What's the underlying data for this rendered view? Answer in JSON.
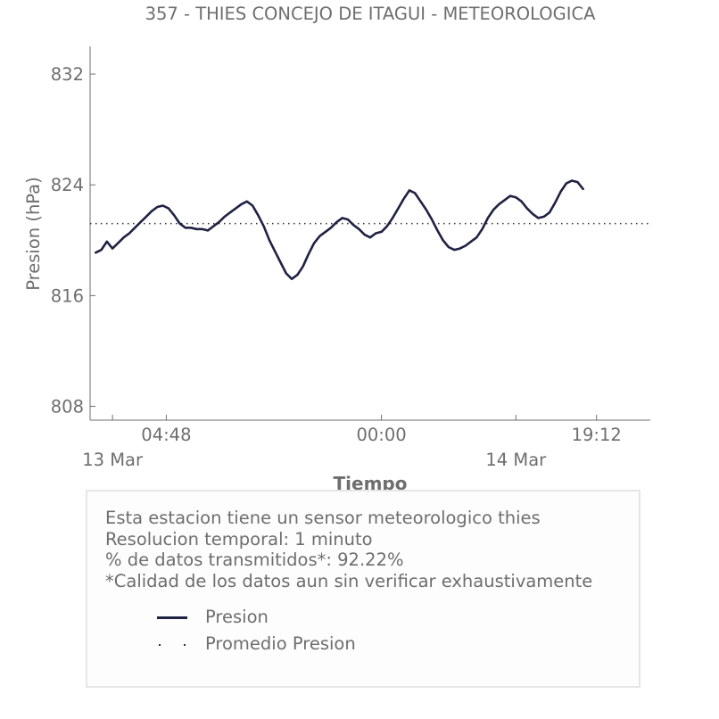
{
  "chart_data": {
    "type": "line",
    "title": "357 - THIES CONCEJO DE ITAGUI - METEOROLOGICA",
    "xlabel": "Tiempo",
    "ylabel": "Presion (hPa)",
    "ylim": [
      807,
      834
    ],
    "yticks": [
      808,
      816,
      824,
      832
    ],
    "xrange": [
      "2024-03-12T22:00",
      "2024-03-15T00:00"
    ],
    "xtick_labels": [
      {
        "t": "2024-03-13T04:48",
        "label": "04:48"
      },
      {
        "t": "2024-03-14T00:00",
        "label": "00:00"
      },
      {
        "t": "2024-03-14T19:12",
        "label": "19:12"
      }
    ],
    "date_labels": [
      {
        "t": "2024-03-13T00:00",
        "label": "13 Mar"
      },
      {
        "t": "2024-03-14T12:00",
        "label": "14 Mar"
      }
    ],
    "mean": 821.2,
    "grid": false,
    "series": [
      {
        "name": "Presion",
        "color": "#1f2242",
        "points": [
          [
            "2024-03-12T22:30",
            819.1
          ],
          [
            "2024-03-12T23:00",
            819.3
          ],
          [
            "2024-03-12T23:30",
            819.9
          ],
          [
            "2024-03-13T00:00",
            819.4
          ],
          [
            "2024-03-13T00:30",
            819.8
          ],
          [
            "2024-03-13T01:00",
            820.2
          ],
          [
            "2024-03-13T01:30",
            820.5
          ],
          [
            "2024-03-13T02:00",
            820.9
          ],
          [
            "2024-03-13T02:30",
            821.3
          ],
          [
            "2024-03-13T03:00",
            821.7
          ],
          [
            "2024-03-13T03:30",
            822.1
          ],
          [
            "2024-03-13T04:00",
            822.4
          ],
          [
            "2024-03-13T04:30",
            822.5
          ],
          [
            "2024-03-13T05:00",
            822.3
          ],
          [
            "2024-03-13T05:30",
            821.8
          ],
          [
            "2024-03-13T06:00",
            821.2
          ],
          [
            "2024-03-13T06:30",
            820.9
          ],
          [
            "2024-03-13T07:00",
            820.9
          ],
          [
            "2024-03-13T07:30",
            820.8
          ],
          [
            "2024-03-13T08:00",
            820.8
          ],
          [
            "2024-03-13T08:30",
            820.7
          ],
          [
            "2024-03-13T09:00",
            821.0
          ],
          [
            "2024-03-13T09:30",
            821.3
          ],
          [
            "2024-03-13T10:00",
            821.7
          ],
          [
            "2024-03-13T10:30",
            822.0
          ],
          [
            "2024-03-13T11:00",
            822.3
          ],
          [
            "2024-03-13T11:30",
            822.6
          ],
          [
            "2024-03-13T12:00",
            822.8
          ],
          [
            "2024-03-13T12:30",
            822.5
          ],
          [
            "2024-03-13T13:00",
            821.8
          ],
          [
            "2024-03-13T13:30",
            821.0
          ],
          [
            "2024-03-13T14:00",
            820.0
          ],
          [
            "2024-03-13T14:30",
            819.2
          ],
          [
            "2024-03-13T15:00",
            818.4
          ],
          [
            "2024-03-13T15:30",
            817.6
          ],
          [
            "2024-03-13T16:00",
            817.2
          ],
          [
            "2024-03-13T16:30",
            817.5
          ],
          [
            "2024-03-13T17:00",
            818.1
          ],
          [
            "2024-03-13T17:30",
            819.0
          ],
          [
            "2024-03-13T18:00",
            819.8
          ],
          [
            "2024-03-13T18:30",
            820.3
          ],
          [
            "2024-03-13T19:00",
            820.6
          ],
          [
            "2024-03-13T19:30",
            820.9
          ],
          [
            "2024-03-13T20:00",
            821.3
          ],
          [
            "2024-03-13T20:30",
            821.6
          ],
          [
            "2024-03-13T21:00",
            821.5
          ],
          [
            "2024-03-13T21:30",
            821.1
          ],
          [
            "2024-03-13T22:00",
            820.8
          ],
          [
            "2024-03-13T22:30",
            820.4
          ],
          [
            "2024-03-13T23:00",
            820.2
          ],
          [
            "2024-03-13T23:30",
            820.5
          ],
          [
            "2024-03-14T00:00",
            820.6
          ],
          [
            "2024-03-14T00:30",
            821.0
          ],
          [
            "2024-03-14T01:00",
            821.6
          ],
          [
            "2024-03-14T01:30",
            822.3
          ],
          [
            "2024-03-14T02:00",
            823.0
          ],
          [
            "2024-03-14T02:30",
            823.6
          ],
          [
            "2024-03-14T03:00",
            823.4
          ],
          [
            "2024-03-14T03:30",
            822.8
          ],
          [
            "2024-03-14T04:00",
            822.2
          ],
          [
            "2024-03-14T04:30",
            821.5
          ],
          [
            "2024-03-14T05:00",
            820.7
          ],
          [
            "2024-03-14T05:30",
            820.0
          ],
          [
            "2024-03-14T06:00",
            819.5
          ],
          [
            "2024-03-14T06:30",
            819.3
          ],
          [
            "2024-03-14T07:00",
            819.4
          ],
          [
            "2024-03-14T07:30",
            819.6
          ],
          [
            "2024-03-14T08:00",
            819.9
          ],
          [
            "2024-03-14T08:30",
            820.2
          ],
          [
            "2024-03-14T09:00",
            820.8
          ],
          [
            "2024-03-14T09:30",
            821.6
          ],
          [
            "2024-03-14T10:00",
            822.2
          ],
          [
            "2024-03-14T10:30",
            822.6
          ],
          [
            "2024-03-14T11:00",
            822.9
          ],
          [
            "2024-03-14T11:30",
            823.2
          ],
          [
            "2024-03-14T12:00",
            823.1
          ],
          [
            "2024-03-14T12:30",
            822.8
          ],
          [
            "2024-03-14T13:00",
            822.3
          ],
          [
            "2024-03-14T13:30",
            821.9
          ],
          [
            "2024-03-14T14:00",
            821.6
          ],
          [
            "2024-03-14T14:30",
            821.7
          ],
          [
            "2024-03-14T15:00",
            822.0
          ],
          [
            "2024-03-14T15:30",
            822.7
          ],
          [
            "2024-03-14T16:00",
            823.5
          ],
          [
            "2024-03-14T16:30",
            824.1
          ],
          [
            "2024-03-14T17:00",
            824.3
          ],
          [
            "2024-03-14T17:30",
            824.2
          ],
          [
            "2024-03-14T18:00",
            823.7
          ]
        ]
      },
      {
        "name": "Promedio Presion",
        "color": "#333333",
        "style": "dotted"
      }
    ]
  },
  "info": {
    "lines": [
      "Esta estacion tiene un sensor meteorologico thies",
      "Resolucion temporal: 1 minuto",
      "% de datos transmitidos*: 92.22%",
      "*Calidad de los datos aun sin verificar exhaustivamente"
    ],
    "legend": {
      "presion": "Presion",
      "promedio": "Promedio Presion"
    }
  }
}
